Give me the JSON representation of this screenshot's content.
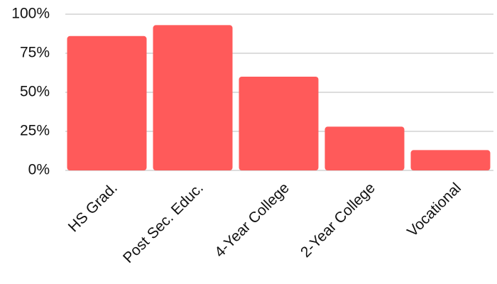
{
  "chart_data": {
    "type": "bar",
    "categories": [
      "HS Grad.",
      "Post Sec. Educ.",
      "4-Year College",
      "2-Year College",
      "Vocational"
    ],
    "values": [
      86,
      93,
      60,
      28,
      13
    ],
    "color": "#ff5a5a",
    "ylim": [
      0,
      100
    ],
    "yticks": [
      {
        "value": 0,
        "label": "0%"
      },
      {
        "value": 25,
        "label": "25%"
      },
      {
        "value": 50,
        "label": "50%"
      },
      {
        "value": 75,
        "label": "75%"
      },
      {
        "value": 100,
        "label": "100%"
      }
    ],
    "grid": true
  }
}
